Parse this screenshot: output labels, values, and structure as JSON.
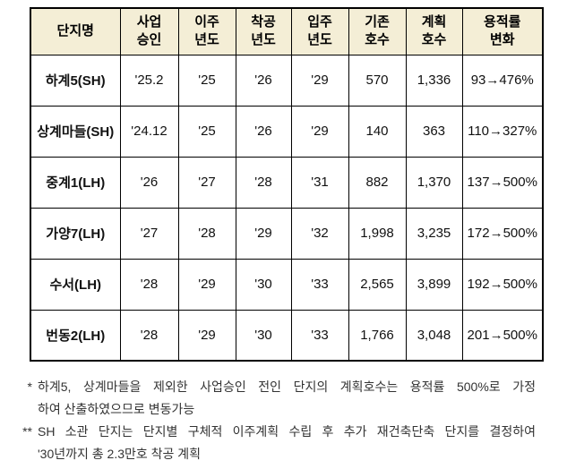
{
  "table": {
    "header_bg": "#f4eed6",
    "border_color": "#000000",
    "headers": [
      "단지명",
      "사업\n승인",
      "이주\n년도",
      "착공\n년도",
      "입주\n년도",
      "기존\n호수",
      "계획\n호수",
      "용적률\n변화"
    ],
    "rows": [
      [
        "하계5(SH)",
        "'25.2",
        "'25",
        "'26",
        "'29",
        "570",
        "1,336",
        "93→476%"
      ],
      [
        "상계마들(SH)",
        "'24.12",
        "'25",
        "'26",
        "'29",
        "140",
        "363",
        "110→327%"
      ],
      [
        "중계1(LH)",
        "'26",
        "'27",
        "'28",
        "'31",
        "882",
        "1,370",
        "137→500%"
      ],
      [
        "가양7(LH)",
        "'27",
        "'28",
        "'29",
        "'32",
        "1,998",
        "3,235",
        "172→500%"
      ],
      [
        "수서(LH)",
        "'28",
        "'29",
        "'30",
        "'33",
        "2,565",
        "3,899",
        "192→500%"
      ],
      [
        "번동2(LH)",
        "'28",
        "'29",
        "'30",
        "'33",
        "1,766",
        "3,048",
        "201→500%"
      ]
    ]
  },
  "footnotes": [
    {
      "marker": "*",
      "lines": [
        "하계5, 상계마들을 제외한 사업승인 전인 단지의 계획호수는 용적률 500%로 가정",
        "하여 산출하였으므로 변동가능"
      ]
    },
    {
      "marker": "**",
      "lines": [
        "SH 소관 단지는 단지별 구체적 이주계획 수립 후 추가 재건축단축 단지를 결정하여",
        "'30년까지 총 2.3만호 착공 계획"
      ]
    }
  ]
}
